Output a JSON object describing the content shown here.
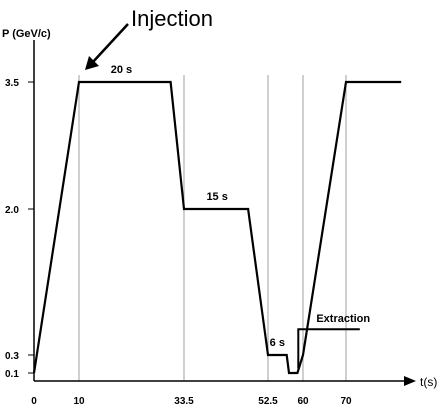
{
  "chart_data": {
    "type": "line",
    "ylabel": "P (GeV/c)",
    "xlabel": "t(s)",
    "xlim": [
      0,
      80
    ],
    "ylim": [
      0,
      3.5
    ],
    "x_ticks": [
      "0",
      "10",
      "33.5",
      "52.5",
      "60",
      "70"
    ],
    "y_ticks": [
      "0.1",
      "0.3",
      "2.0",
      "3.5"
    ],
    "series": [
      {
        "x": [
          0,
          10,
          30.5,
          33.5,
          48,
          52.5,
          56.5,
          57,
          58.8,
          60,
          70,
          78
        ],
        "y": [
          0.1,
          3.5,
          3.5,
          2.0,
          2.0,
          0.3,
          0.3,
          0.1,
          0.1,
          0.3,
          3.5,
          3.5
        ]
      }
    ],
    "extraction_marker": {
      "x": [
        59,
        59,
        72
      ],
      "y": [
        0.15,
        0.6,
        0.6
      ]
    },
    "annotations": [
      {
        "text": "Injection",
        "x": 10,
        "y": 3.5
      },
      {
        "text": "20 s",
        "x": 19.5,
        "y": 3.5
      },
      {
        "text": "15 s",
        "x": 41,
        "y": 2.0
      },
      {
        "text": "6 s",
        "x": 54.5,
        "y": 0.3
      },
      {
        "text": "Extraction",
        "x": 65,
        "y": 0.6
      }
    ]
  }
}
